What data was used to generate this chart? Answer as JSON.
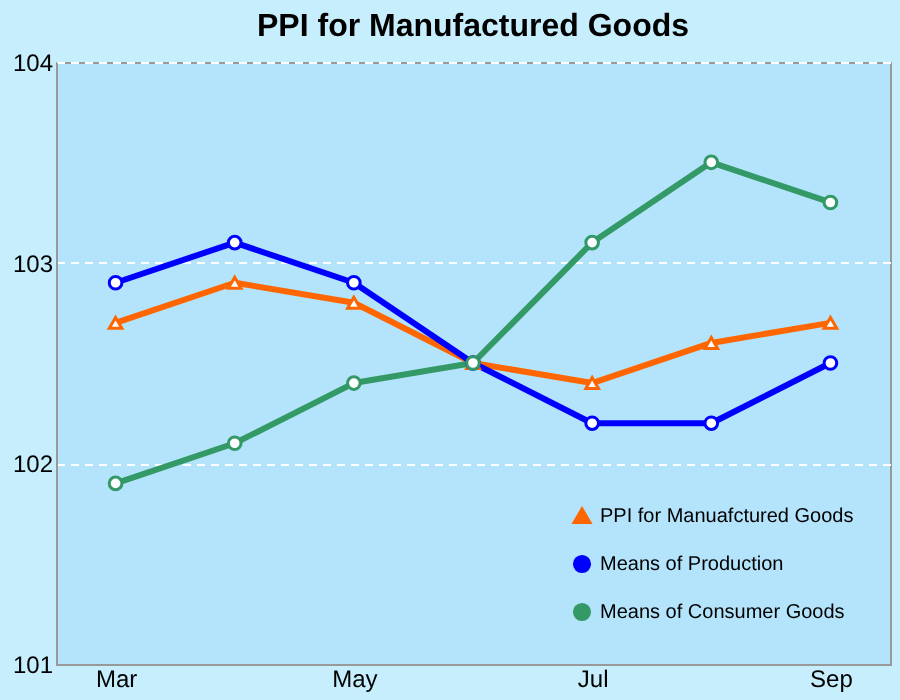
{
  "chart_data": {
    "type": "line",
    "title": "PPI for Manufactured Goods",
    "categories": [
      "Mar",
      null,
      "May",
      null,
      "Jul",
      null,
      "Sep"
    ],
    "series": [
      {
        "name": "PPI for Manuafctured Goods",
        "color": "#ff6600",
        "marker": "triangle",
        "values": [
          102.7,
          102.9,
          102.8,
          102.5,
          102.4,
          102.6,
          102.7
        ]
      },
      {
        "name": "Means of Production",
        "color": "#0000ff",
        "marker": "circle",
        "values": [
          102.9,
          103.1,
          102.9,
          102.5,
          102.2,
          102.2,
          102.5
        ]
      },
      {
        "name": "Means of Consumer Goods",
        "color": "#339966",
        "marker": "circle",
        "values": [
          101.9,
          102.1,
          102.4,
          102.5,
          103.1,
          103.5,
          103.3
        ]
      }
    ],
    "ylim": [
      101,
      104
    ],
    "yticks": [
      101,
      102,
      103,
      104
    ],
    "grid": "y",
    "legend": "bottom right",
    "line_style": "solid"
  }
}
